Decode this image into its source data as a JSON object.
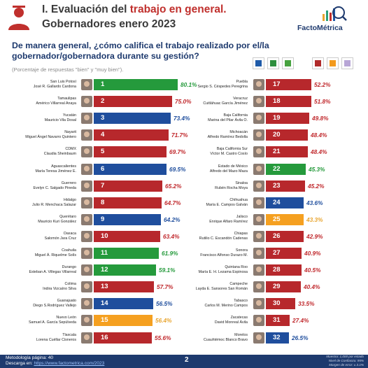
{
  "header": {
    "title_prefix": "I. Evaluación del ",
    "title_highlight": "trabajo en general.",
    "title_line2": "Gobernadores enero 2023",
    "brand": "FactoMétrica",
    "brand_icon": "bar-chart-magnifier-icon",
    "logo_icon": "governor-silhouette-icon"
  },
  "question": "De manera general, ¿cómo califica el trabajo realizado por el/la gobernador/gobernadora durante su gestión?",
  "subtitle": "(Porcentaje de respuestas \"bien\" y \"muy bien\").",
  "party_legend": [
    {
      "key": "PAN",
      "color": "#1e5aa8",
      "icon": "pan-logo-icon"
    },
    {
      "key": "PRI",
      "color": "#2e8f3e",
      "icon": "pri-logo-icon"
    },
    {
      "key": "PVEM",
      "color": "#47a23f",
      "icon": "pvem-logo-icon"
    },
    {
      "key": "MORENA",
      "color": "#b02a2a",
      "icon": "morena-logo-icon"
    },
    {
      "key": "MC",
      "color": "#f39a1e",
      "icon": "mc-logo-icon"
    },
    {
      "key": "NA",
      "color": "#b8a6d6",
      "icon": "na-logo-icon"
    }
  ],
  "colors": {
    "PAN": "#1f4e9d",
    "PRI": "#259a3c",
    "MORENA": "#b7282c",
    "MC": "#f5a020",
    "value_PAN": "#1f4e9d",
    "value_PRI": "#259a3c",
    "value_MORENA": "#c0282c",
    "value_MC": "#e8a530",
    "footer_bg": "#1e3a6e"
  },
  "chart_data": {
    "type": "bar",
    "orientation": "horizontal",
    "unit": "%",
    "columns": [
      [
        {
          "rank": 1,
          "state": "San Luis Potosí",
          "name": "José R. Gallardo Cardona",
          "value": 80.1,
          "label": "80.1%",
          "party": "PRI"
        },
        {
          "rank": 2,
          "state": "Tamaulipas",
          "name": "Américo Villarreal Anaya",
          "value": 75.0,
          "label": "75.0%",
          "party": "MORENA"
        },
        {
          "rank": 3,
          "state": "Yucatán",
          "name": "Mauricio Vila Dosal",
          "value": 73.4,
          "label": "73.4%",
          "party": "PAN"
        },
        {
          "rank": 4,
          "state": "Nayarit",
          "name": "Miguel Ángel Navarro Quintero",
          "value": 71.7,
          "label": "71.7%",
          "party": "MORENA"
        },
        {
          "rank": 5,
          "state": "CDMX",
          "name": "Claudia Sheinbaum",
          "value": 69.7,
          "label": "69.7%",
          "party": "MORENA"
        },
        {
          "rank": 6,
          "state": "Aguascalientes",
          "name": "María Teresa Jiménez E.",
          "value": 69.5,
          "label": "69.5%",
          "party": "PAN"
        },
        {
          "rank": 7,
          "state": "Guerrero",
          "name": "Evelyn C. Salgado Pineda",
          "value": 65.2,
          "label": "65.2%",
          "party": "MORENA"
        },
        {
          "rank": 8,
          "state": "Hidalgo",
          "name": "Julio R. Menchaca Salazar",
          "value": 64.7,
          "label": "64.7%",
          "party": "MORENA"
        },
        {
          "rank": 9,
          "state": "Querétaro",
          "name": "Mauricio Kuri González",
          "value": 64.2,
          "label": "64.2%",
          "party": "PAN"
        },
        {
          "rank": 10,
          "state": "Oaxaca",
          "name": "Salomón Jara Cruz",
          "value": 63.4,
          "label": "63.4%",
          "party": "MORENA"
        },
        {
          "rank": 11,
          "state": "Coahuila",
          "name": "Miguel Á. Riquelme Solís",
          "value": 61.9,
          "label": "61.9%",
          "party": "PRI"
        },
        {
          "rank": 12,
          "state": "Durango",
          "name": "Esteban A. Villegas Villarreal",
          "value": 59.1,
          "label": "59.1%",
          "party": "PRI"
        },
        {
          "rank": 13,
          "state": "Colima",
          "name": "Indira Vizcaíno Silva",
          "value": 57.7,
          "label": "57.7%",
          "party": "MORENA"
        },
        {
          "rank": 14,
          "state": "Guanajuato",
          "name": "Diego S.Rodríguez Vallejo",
          "value": 56.5,
          "label": "56.5%",
          "party": "PAN"
        },
        {
          "rank": 15,
          "state": "Nuevo León",
          "name": "Samuel A. García Sepúlveda",
          "value": 56.4,
          "label": "56.4%",
          "party": "MC"
        },
        {
          "rank": 16,
          "state": "Tlaxcala",
          "name": "Lorena Cuéllar Cisneros",
          "value": 55.6,
          "label": "55.6%",
          "party": "MORENA"
        }
      ],
      [
        {
          "rank": 17,
          "state": "Puebla",
          "name": "Sergio S. Céspedes Peregrina",
          "value": 52.2,
          "label": "52.2%",
          "party": "MORENA"
        },
        {
          "rank": 18,
          "state": "Veracruz",
          "name": "Cuitláhuac García Jiménez",
          "value": 51.8,
          "label": "51.8%",
          "party": "MORENA"
        },
        {
          "rank": 19,
          "state": "Baja California",
          "name": "Marina del Pilar Ávila O.",
          "value": 49.8,
          "label": "49.8%",
          "party": "MORENA"
        },
        {
          "rank": 20,
          "state": "Michoacán",
          "name": "Alfredo Ramírez Bedolla",
          "value": 48.4,
          "label": "48.4%",
          "party": "MORENA"
        },
        {
          "rank": 21,
          "state": "Baja California Sur",
          "name": "Víctor M. Castro Cosío",
          "value": 48.4,
          "label": "48.4%",
          "party": "MORENA"
        },
        {
          "rank": 22,
          "state": "Estado de México",
          "name": "Alfredo del Mazo Maza",
          "value": 45.3,
          "label": "45.3%",
          "party": "PRI"
        },
        {
          "rank": 23,
          "state": "Sinaloa",
          "name": "Rubén Rocha Moya",
          "value": 45.2,
          "label": "45.2%",
          "party": "MORENA"
        },
        {
          "rank": 24,
          "state": "Chihuahua",
          "name": "María E. Campos Galván",
          "value": 43.6,
          "label": "43.6%",
          "party": "PAN"
        },
        {
          "rank": 25,
          "state": "Jalisco",
          "name": "Enrique Alfaro Ramírez",
          "value": 43.3,
          "label": "43.3%",
          "party": "MC"
        },
        {
          "rank": 26,
          "state": "Chiapas",
          "name": "Rutilio C. Escandón Cadenas",
          "value": 42.9,
          "label": "42.9%",
          "party": "MORENA"
        },
        {
          "rank": 27,
          "state": "Sonora",
          "name": "Francisco Alfonso Durazo M.",
          "value": 40.9,
          "label": "40.9%",
          "party": "MORENA"
        },
        {
          "rank": 28,
          "state": "Quintana Roo",
          "name": "María E. H. Lezama Espinosa",
          "value": 40.5,
          "label": "40.5%",
          "party": "MORENA"
        },
        {
          "rank": 29,
          "state": "Campeche",
          "name": "Layda E. Sansores San Román",
          "value": 40.4,
          "label": "40.4%",
          "party": "MORENA"
        },
        {
          "rank": 30,
          "state": "Tabasco",
          "name": "Carlos M. Merino Campos",
          "value": 33.5,
          "label": "33.5%",
          "party": "MORENA"
        },
        {
          "rank": 31,
          "state": "Zacatecas",
          "name": "David Monreal Ávila",
          "value": 27.4,
          "label": "27.4%",
          "party": "MORENA"
        },
        {
          "rank": 32,
          "state": "Morelos",
          "name": "Cuauhtémoc Blanco Bravo",
          "value": 26.5,
          "label": "26.5%",
          "party": "PAN"
        }
      ]
    ]
  },
  "footer": {
    "line1": "Metodología página: 40",
    "line2_prefix": "Descarga en: ",
    "link": "https://www.factometrica.com/2023",
    "page": "2",
    "meta1": "Muestra: 1,000 por estado",
    "meta2": "Nivel de Confianza: 95%",
    "meta3": "Margen de error: ± 3.1%"
  }
}
